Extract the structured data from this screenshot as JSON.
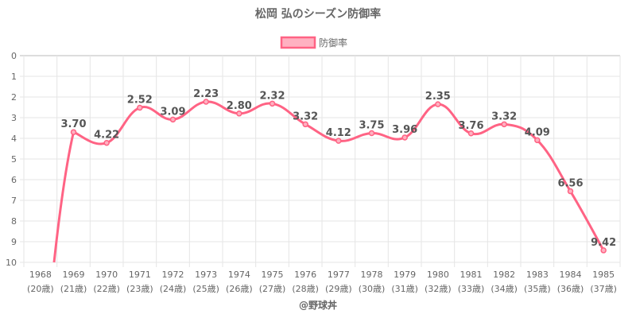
{
  "chart_data": {
    "type": "line",
    "title": "松岡 弘のシーズン防御率",
    "legend": {
      "label": "防御率",
      "position": "top"
    },
    "categories": [
      "1968",
      "1969",
      "1970",
      "1971",
      "1972",
      "1973",
      "1974",
      "1975",
      "1976",
      "1977",
      "1978",
      "1979",
      "1980",
      "1981",
      "1982",
      "1983",
      "1984",
      "1985"
    ],
    "ages": [
      "(20歳)",
      "(21歳)",
      "(22歳)",
      "(23歳)",
      "(24歳)",
      "(25歳)",
      "(26歳)",
      "(27歳)",
      "(28歳)",
      "(29歳)",
      "(30歳)",
      "(31歳)",
      "(32歳)",
      "(33歳)",
      "(34歳)",
      "(35歳)",
      "(36歳)",
      "(37歳)"
    ],
    "series": [
      {
        "name": "防御率",
        "values": [
          null,
          3.7,
          4.22,
          2.52,
          3.09,
          2.23,
          2.8,
          2.32,
          3.32,
          4.12,
          3.75,
          3.96,
          2.35,
          3.76,
          3.32,
          4.09,
          6.56,
          9.42
        ]
      }
    ],
    "data_labels": [
      "",
      "3.70",
      "4.22",
      "2.52",
      "3.09",
      "2.23",
      "2.80",
      "2.32",
      "3.32",
      "4.12",
      "3.75",
      "3.96",
      "2.35",
      "3.76",
      "3.32",
      "4.09",
      "6.56",
      "9.42"
    ],
    "y_ticks": [
      "0",
      "1",
      "2",
      "3",
      "4",
      "5",
      "6",
      "7",
      "8",
      "9",
      "10"
    ],
    "ylim": [
      0,
      10
    ],
    "y_reversed": true,
    "grid": true,
    "line_color": "#ff6384",
    "fill_color": "#ffb1c1"
  },
  "credit": "@野球丼"
}
